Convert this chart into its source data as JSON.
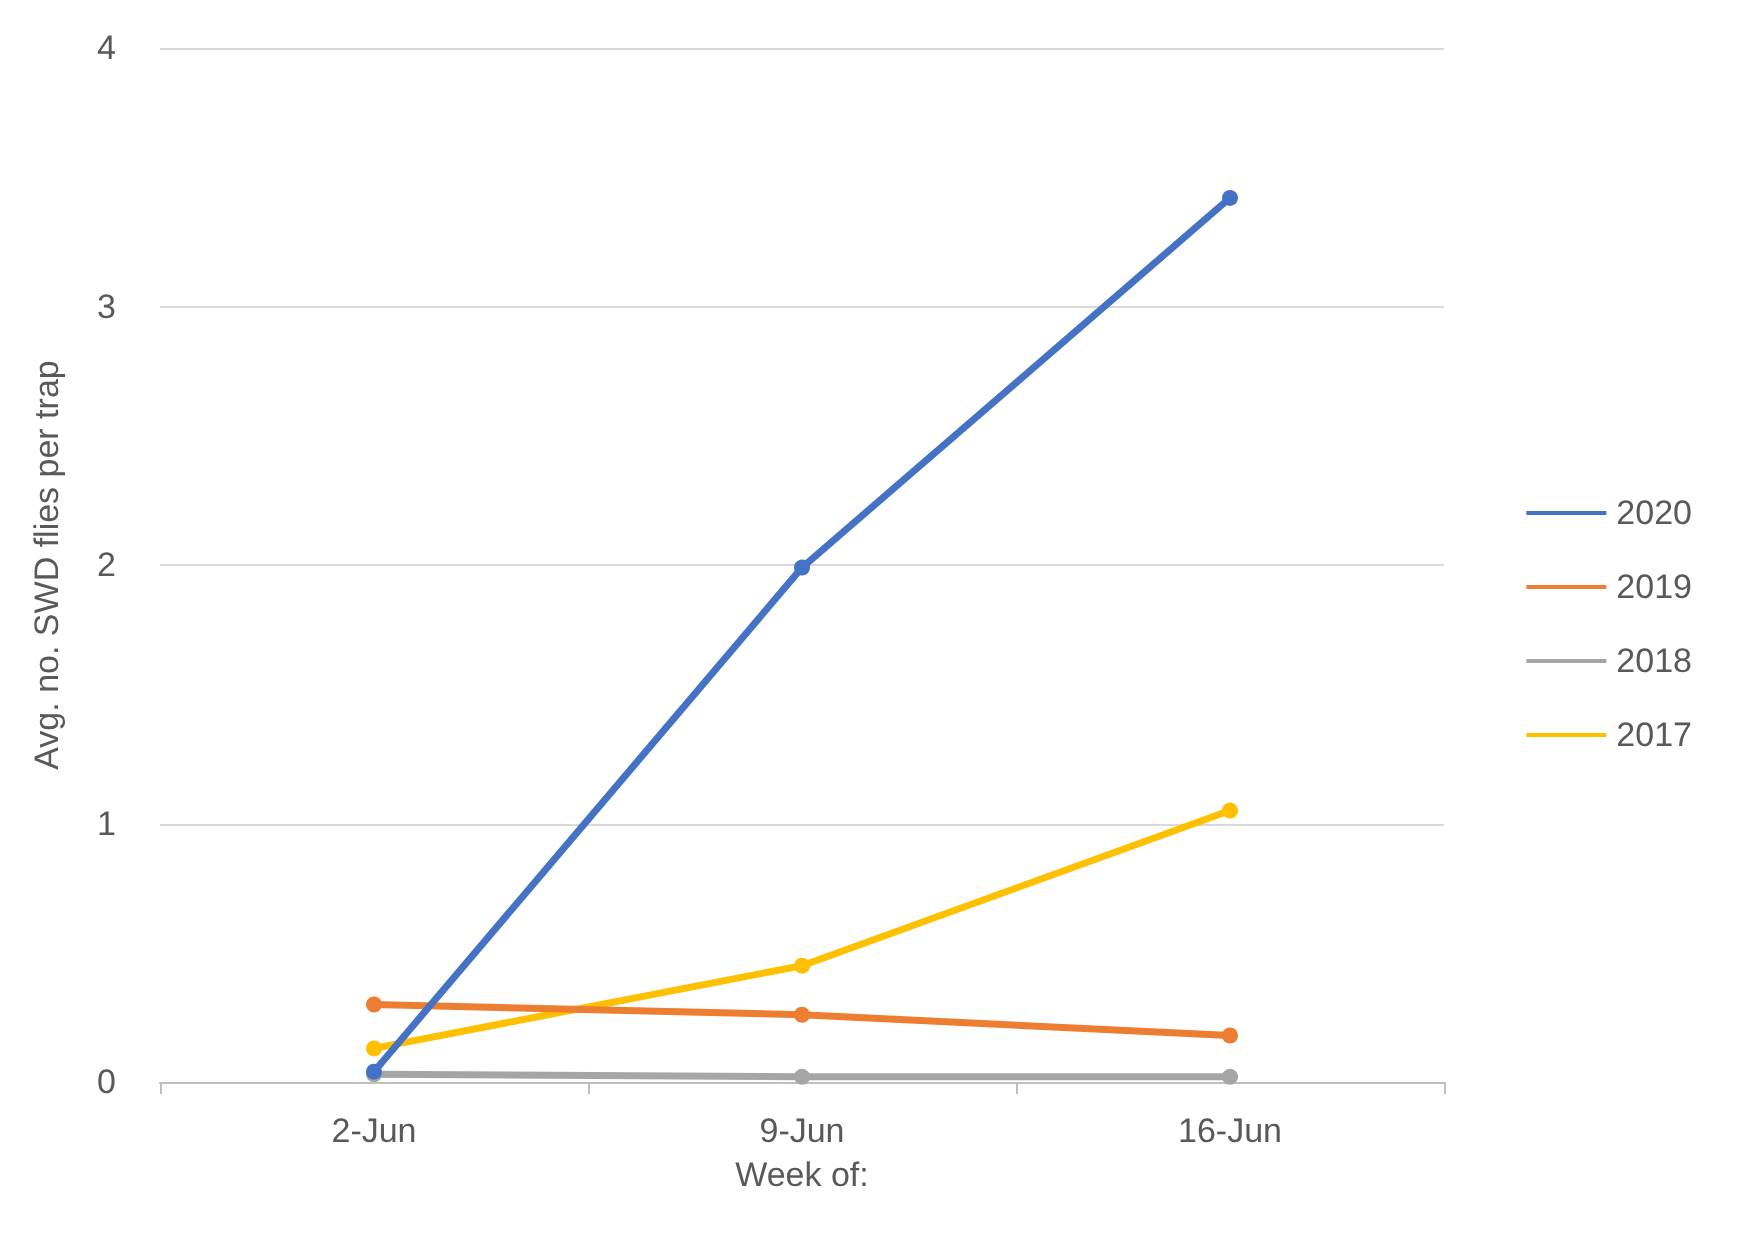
{
  "chart_data": {
    "type": "line",
    "xlabel": "Week of:",
    "ylabel": "Avg. no. SWD flies per trap",
    "categories": [
      "2-Jun",
      "9-Jun",
      "16-Jun"
    ],
    "series": [
      {
        "name": "2020",
        "color": "#4472c4",
        "values": [
          0.04,
          1.99,
          3.42
        ]
      },
      {
        "name": "2019",
        "color": "#ed7d31",
        "values": [
          0.3,
          0.26,
          0.18
        ]
      },
      {
        "name": "2018",
        "color": "#a5a5a5",
        "values": [
          0.03,
          0.02,
          0.02
        ]
      },
      {
        "name": "2017",
        "color": "#ffc000",
        "values": [
          0.13,
          0.45,
          1.05
        ]
      }
    ],
    "ylim": [
      0,
      4
    ],
    "yticks": [
      0,
      1,
      2,
      3,
      4
    ],
    "grid": "y",
    "legend": "right",
    "marker": "circle",
    "line_style": "solid"
  }
}
